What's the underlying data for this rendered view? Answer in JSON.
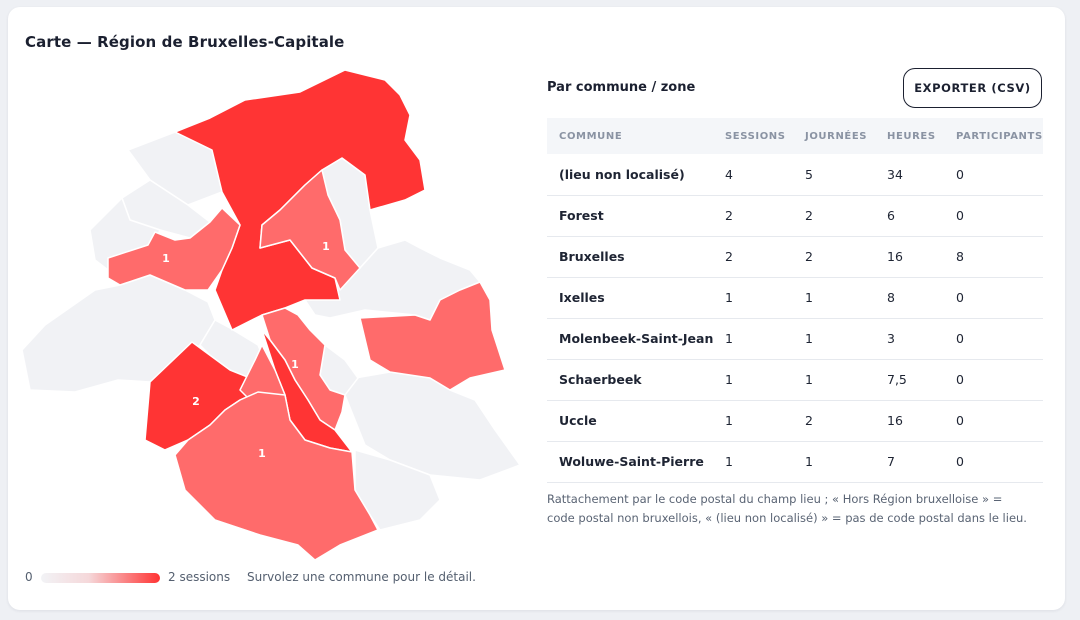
{
  "map": {
    "title": "Carte — Région de Bruxelles-Capitale",
    "legend": {
      "min_label": "0",
      "max_label": "2 sessions",
      "hint": "Survolez une commune pour le détail."
    },
    "colors": {
      "empty": "#f1f2f5",
      "low": "#ff6b6b",
      "high": "#ff3434",
      "stroke": "#ffffff"
    },
    "zone_labels": [
      {
        "id": "evere",
        "label": "1"
      },
      {
        "id": "ganshoren",
        "label": "1"
      },
      {
        "id": "ixelles",
        "label": "1"
      },
      {
        "id": "forest",
        "label": "2"
      },
      {
        "id": "uccle",
        "label": "1"
      }
    ]
  },
  "table": {
    "title": "Par commune / zone",
    "export_label": "EXPORTER (CSV)",
    "columns": [
      "COMMUNE",
      "SESSIONS",
      "JOURNÉES",
      "HEURES",
      "PARTICIPANTS"
    ],
    "rows": [
      [
        "(lieu non localisé)",
        "4",
        "5",
        "34",
        "0"
      ],
      [
        "Forest",
        "2",
        "2",
        "6",
        "0"
      ],
      [
        "Bruxelles",
        "2",
        "2",
        "16",
        "8"
      ],
      [
        "Ixelles",
        "1",
        "1",
        "8",
        "0"
      ],
      [
        "Molenbeek-Saint-Jean",
        "1",
        "1",
        "3",
        "0"
      ],
      [
        "Schaerbeek",
        "1",
        "1",
        "7,5",
        "0"
      ],
      [
        "Uccle",
        "1",
        "2",
        "16",
        "0"
      ],
      [
        "Woluwe-Saint-Pierre",
        "1",
        "1",
        "7",
        "0"
      ]
    ],
    "note": "Rattachement par le code postal du champ lieu ; « Hors Région bruxelloise » = code postal non bruxellois, « (lieu non localisé) » = pas de code postal dans le lieu."
  }
}
